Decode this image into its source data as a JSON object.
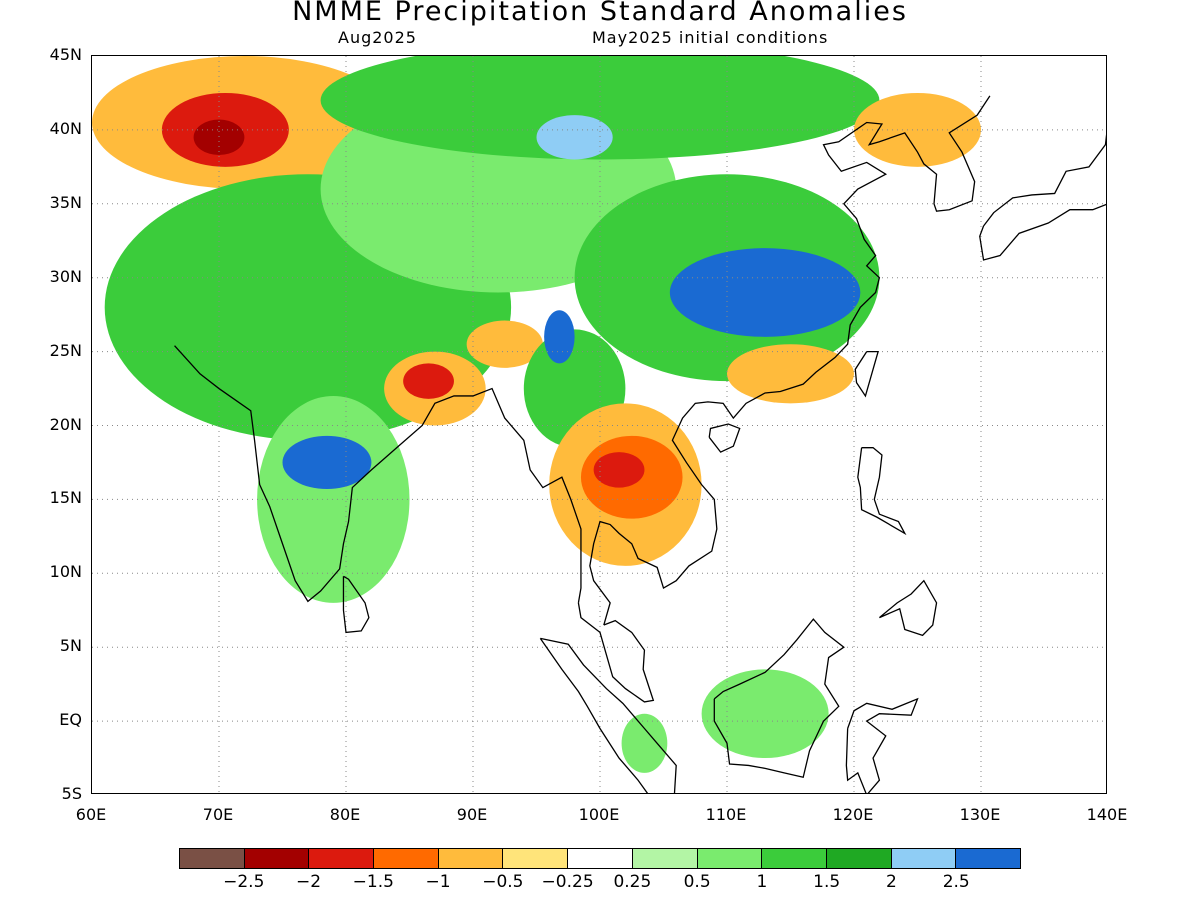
{
  "title": "NMME Precipitation Standard Anomalies",
  "subtitle_left": "Aug2025",
  "subtitle_right": "May2025 initial conditions",
  "y_axis_labels": [
    "45N",
    "40N",
    "35N",
    "30N",
    "25N",
    "20N",
    "15N",
    "10N",
    "5N",
    "EQ",
    "5S"
  ],
  "x_axis_labels": [
    "60E",
    "70E",
    "80E",
    "90E",
    "100E",
    "110E",
    "120E",
    "130E",
    "140E"
  ],
  "colorbar": {
    "colors": [
      "#7a5045",
      "#a30000",
      "#dc1a0e",
      "#ff6a00",
      "#ffbb3c",
      "#ffe47a",
      "#ffffff",
      "#b3f5a5",
      "#7aeb6e",
      "#3bcc3b",
      "#1fa923",
      "#8fcdf5",
      "#1a6ad2"
    ],
    "labels": [
      "−2.5",
      "−2",
      "−1.5",
      "−1",
      "−0.5",
      "−0.25",
      "0.25",
      "0.5",
      "1",
      "1.5",
      "2",
      "2.5"
    ]
  },
  "map_extent": {
    "lon": [
      60,
      140
    ],
    "lat": [
      -5,
      45
    ]
  },
  "regions": [
    {
      "name": "central-asia-dry",
      "color": "#ffbb3c",
      "cx": 72,
      "cy": 40.5,
      "rx": 12,
      "ry": 4.5
    },
    {
      "name": "central-asia-dry-core",
      "color": "#dc1a0e",
      "cx": 70.5,
      "cy": 40,
      "rx": 5,
      "ry": 2.5
    },
    {
      "name": "central-asia-dry-peak",
      "color": "#a30000",
      "cx": 70,
      "cy": 39.5,
      "rx": 2,
      "ry": 1.2
    },
    {
      "name": "india-pakistan-wet",
      "color": "#3bcc3b",
      "cx": 77,
      "cy": 28,
      "rx": 16,
      "ry": 9
    },
    {
      "name": "tibet-wet",
      "color": "#7aeb6e",
      "cx": 92,
      "cy": 36,
      "rx": 14,
      "ry": 7
    },
    {
      "name": "mongolia-wet",
      "color": "#3bcc3b",
      "cx": 100,
      "cy": 42,
      "rx": 22,
      "ry": 4
    },
    {
      "name": "peninsular-india-wet",
      "color": "#7aeb6e",
      "cx": 79,
      "cy": 15,
      "rx": 6,
      "ry": 7
    },
    {
      "name": "central-india-very-wet",
      "color": "#1a6ad2",
      "cx": 78.5,
      "cy": 17.5,
      "rx": 3.5,
      "ry": 1.8
    },
    {
      "name": "bengal-dry",
      "color": "#ffbb3c",
      "cx": 87,
      "cy": 22.5,
      "rx": 4,
      "ry": 2.5
    },
    {
      "name": "bengal-dry-core",
      "color": "#dc1a0e",
      "cx": 86.5,
      "cy": 23,
      "rx": 2,
      "ry": 1.2
    },
    {
      "name": "northeast-india-dry",
      "color": "#ffbb3c",
      "cx": 92.5,
      "cy": 25.5,
      "rx": 3,
      "ry": 1.6
    },
    {
      "name": "myanmar-wet",
      "color": "#3bcc3b",
      "cx": 98,
      "cy": 22.5,
      "rx": 4,
      "ry": 4
    },
    {
      "name": "myanmar-very-wet",
      "color": "#1a6ad2",
      "cx": 96.8,
      "cy": 26,
      "rx": 1.2,
      "ry": 1.8
    },
    {
      "name": "south-china-wet",
      "color": "#3bcc3b",
      "cx": 110,
      "cy": 30,
      "rx": 12,
      "ry": 7
    },
    {
      "name": "yangtze-very-wet",
      "color": "#1a6ad2",
      "cx": 113,
      "cy": 29,
      "rx": 7.5,
      "ry": 3
    },
    {
      "name": "southeast-china-dry",
      "color": "#ffbb3c",
      "cx": 115,
      "cy": 23.5,
      "rx": 5,
      "ry": 2
    },
    {
      "name": "indochina-dry",
      "color": "#ffbb3c",
      "cx": 102,
      "cy": 16,
      "rx": 6,
      "ry": 5.5
    },
    {
      "name": "indochina-dry-core",
      "color": "#ff6a00",
      "cx": 102.5,
      "cy": 16.5,
      "rx": 4,
      "ry": 2.8
    },
    {
      "name": "indochina-dry-peak",
      "color": "#dc1a0e",
      "cx": 101.5,
      "cy": 17,
      "rx": 2,
      "ry": 1.2
    },
    {
      "name": "korea-japan-dry",
      "color": "#ffbb3c",
      "cx": 125,
      "cy": 40,
      "rx": 5,
      "ry": 2.5
    },
    {
      "name": "borneo-wet",
      "color": "#7aeb6e",
      "cx": 113,
      "cy": 0.5,
      "rx": 5,
      "ry": 3
    },
    {
      "name": "sumatra-wet",
      "color": "#7aeb6e",
      "cx": 103.5,
      "cy": -1.5,
      "rx": 1.8,
      "ry": 2
    },
    {
      "name": "west-china-wet",
      "color": "#8fcdf5",
      "cx": 98,
      "cy": 39.5,
      "rx": 3,
      "ry": 1.5
    }
  ]
}
